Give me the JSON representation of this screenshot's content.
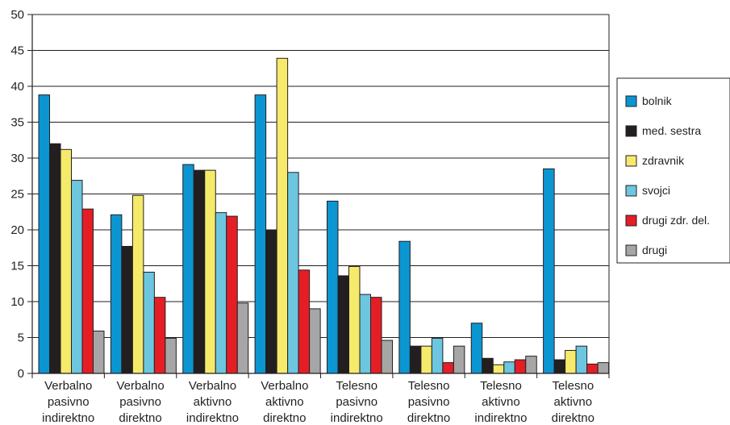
{
  "chart_data": {
    "type": "bar",
    "categories": [
      [
        "Verbalno",
        "pasivno",
        "indirektno"
      ],
      [
        "Verbalno",
        "pasivno",
        "direktno"
      ],
      [
        "Verbalno",
        "aktivno",
        "indirektno"
      ],
      [
        "Verbalno",
        "aktivno",
        "direktno"
      ],
      [
        "Telesno",
        "pasivno",
        "indirektno"
      ],
      [
        "Telesno",
        "pasivno",
        "direktno"
      ],
      [
        "Telesno",
        "aktivno",
        "indirektno"
      ],
      [
        "Telesno",
        "aktivno",
        "direktno"
      ]
    ],
    "series": [
      {
        "name": "bolnik",
        "color": "#0b96d2",
        "values": [
          38.8,
          22.1,
          29.1,
          38.8,
          24.0,
          18.4,
          7.0,
          28.5
        ]
      },
      {
        "name": "med. sestra",
        "color": "#231f20",
        "values": [
          32.0,
          17.7,
          28.3,
          20.0,
          13.6,
          3.8,
          2.1,
          1.9
        ]
      },
      {
        "name": "zdravnik",
        "color": "#f6ea6b",
        "values": [
          31.2,
          24.8,
          28.3,
          43.9,
          14.9,
          3.8,
          1.2,
          3.2
        ]
      },
      {
        "name": "svojci",
        "color": "#6cc6e0",
        "values": [
          26.9,
          14.1,
          22.4,
          28.0,
          11.0,
          4.9,
          1.6,
          3.8
        ]
      },
      {
        "name": "drugi zdr. del.",
        "color": "#e51e25",
        "values": [
          22.9,
          10.6,
          21.9,
          14.4,
          10.6,
          1.5,
          1.9,
          1.3
        ]
      },
      {
        "name": "drugi",
        "color": "#a6a6a6",
        "values": [
          5.9,
          4.9,
          9.8,
          9.0,
          4.6,
          3.8,
          2.4,
          1.5
        ]
      }
    ],
    "yticks": [
      "0",
      "5",
      "10",
      "15",
      "20",
      "25",
      "30",
      "35",
      "40",
      "45",
      "50"
    ],
    "ylim": [
      0,
      50
    ],
    "grid": true,
    "legend_position": "right"
  }
}
